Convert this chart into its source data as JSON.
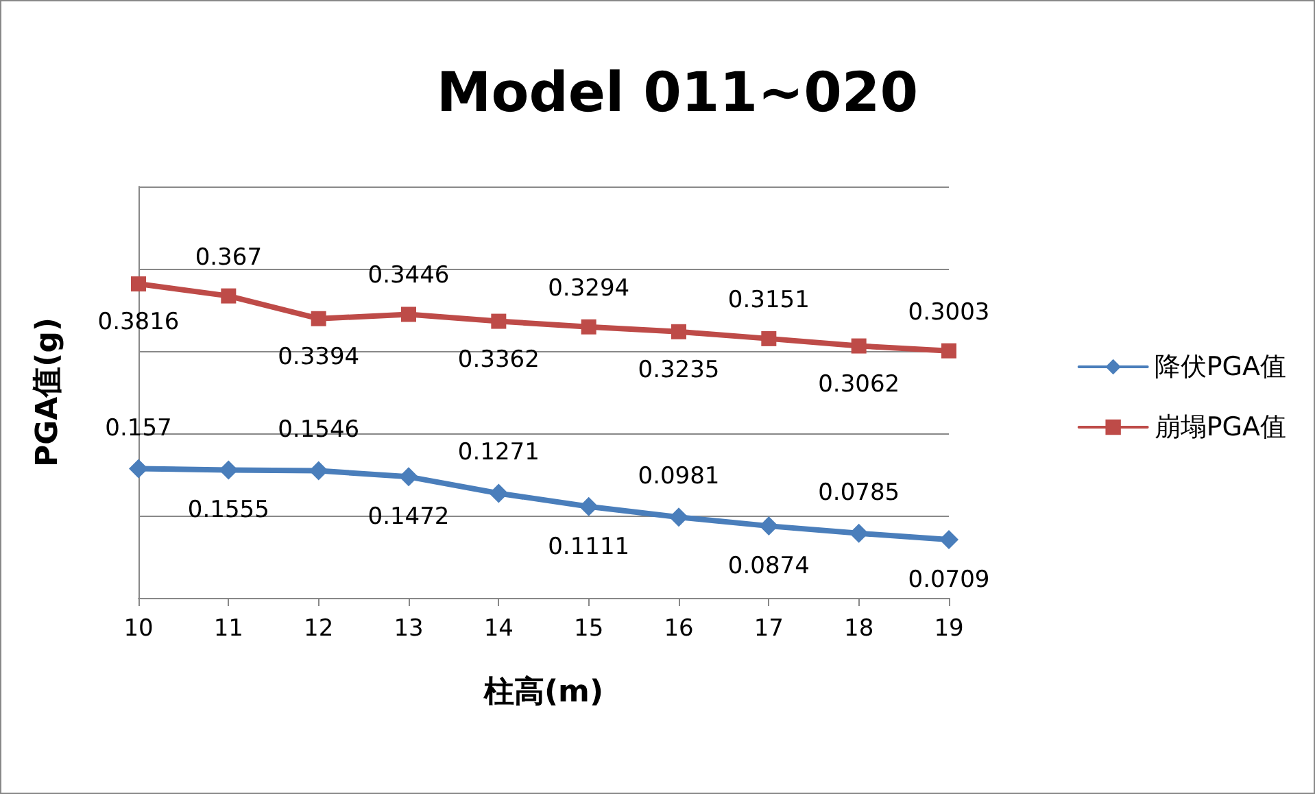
{
  "chart_data": {
    "type": "line",
    "title": "Model 011~020",
    "xlabel": "柱高(m)",
    "ylabel": "PGA值(g)",
    "categories": [
      "10",
      "11",
      "12",
      "13",
      "14",
      "15",
      "16",
      "17",
      "18",
      "19"
    ],
    "series": [
      {
        "name": "降伏PGA值",
        "color": "#4a7ebb",
        "marker": "diamond",
        "values": [
          0.157,
          0.1555,
          0.1546,
          0.1472,
          0.1271,
          0.1111,
          0.0981,
          0.0874,
          0.0785,
          0.0709
        ]
      },
      {
        "name": "崩塌PGA值",
        "color": "#be4b48",
        "marker": "square",
        "values": [
          0.3816,
          0.367,
          0.3394,
          0.3446,
          0.3362,
          0.3294,
          0.3235,
          0.3151,
          0.3062,
          0.3003
        ]
      }
    ],
    "ylim": [
      0,
      0.5
    ],
    "yticks": [
      {
        "value": 0,
        "label": null
      },
      {
        "value": 0.1,
        "label": null
      },
      {
        "value": 0.2,
        "label": null
      },
      {
        "value": 0.3,
        "label": null
      },
      {
        "value": 0.4,
        "label": null
      },
      {
        "value": 0.5,
        "label": null
      }
    ],
    "tick_labels": "x",
    "grid": "y",
    "legend": "right",
    "data_labels": true,
    "line_style": "solid"
  }
}
